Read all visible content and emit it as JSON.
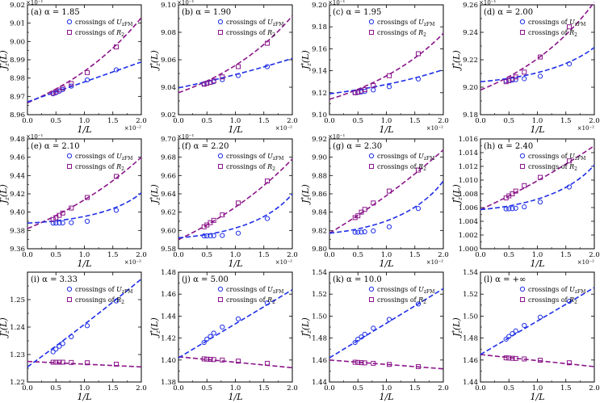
{
  "figure": {
    "legend_circle_label": "crossings of U_zFM",
    "legend_square_label": "crossings of R_2",
    "circle_color": "#1f2fe6",
    "square_color": "#8a168a",
    "fit_color_circle": "#1f2fe6",
    "fit_color_square": "#8a168a"
  },
  "chart_data": [
    {
      "type": "scatter",
      "panel": "a",
      "title": "(a) α = 1.85",
      "xlabel": "1/L",
      "ylabel": "J_z*(L)",
      "xlim": [
        0,
        2.0
      ],
      "ylim": [
        8.96,
        9.02
      ],
      "xticks": [
        "0.0",
        "0.5",
        "1.0",
        "1.5",
        "2.0"
      ],
      "yticks": [
        "8.96",
        "8.97",
        "8.98",
        "8.99",
        "9.00",
        "9.01",
        "9.02"
      ],
      "x_exponent": "×10⁻²",
      "y_exponent": "×10⁻¹",
      "x_points": [
        0.45,
        0.5,
        0.56,
        0.62,
        0.77,
        1.05,
        1.56
      ],
      "circle_series": [
        8.9714,
        8.972,
        8.9728,
        8.9737,
        8.9756,
        8.979,
        8.9845
      ],
      "square_series": [
        8.9718,
        8.9725,
        8.9735,
        8.9745,
        8.977,
        8.983,
        8.997
      ],
      "circle_fit": {
        "x0": 0,
        "y0": 8.967,
        "x1": 2.0,
        "y1": 8.9888,
        "curv": 0
      },
      "square_fit": {
        "x0": 0,
        "y0": 8.9665,
        "x1": 2.0,
        "y1": 9.013,
        "curv": 0.4
      }
    },
    {
      "type": "scatter",
      "panel": "b",
      "title": "(b) α = 1.90",
      "xlabel": "1/L",
      "ylabel": "J_z*(L)",
      "xlim": [
        0,
        2.0
      ],
      "ylim": [
        9.02,
        9.1
      ],
      "xticks": [
        "0.0",
        "0.5",
        "1.0",
        "1.5",
        "2.0"
      ],
      "yticks": [
        "9.02",
        "9.04",
        "9.06",
        "9.08",
        "9.10"
      ],
      "x_exponent": "×10⁻²",
      "y_exponent": "×10⁻¹",
      "x_points": [
        0.45,
        0.5,
        0.56,
        0.62,
        0.77,
        1.05,
        1.56
      ],
      "circle_series": [
        9.0425,
        9.043,
        9.0435,
        9.044,
        9.0455,
        9.0485,
        9.055
      ],
      "square_series": [
        9.0422,
        9.0428,
        9.0436,
        9.0446,
        9.0475,
        9.055,
        9.072
      ],
      "circle_fit": {
        "x0": 0,
        "y0": 9.0395,
        "x1": 2.0,
        "y1": 9.061,
        "curv": 0.15
      },
      "square_fit": {
        "x0": 0,
        "y0": 9.036,
        "x1": 2.0,
        "y1": 9.092,
        "curv": 0.45
      }
    },
    {
      "type": "scatter",
      "panel": "c",
      "title": "(c) α = 1.95",
      "xlabel": "1/L",
      "ylabel": "J_z*(L)",
      "xlim": [
        0,
        2.0
      ],
      "ylim": [
        9.1,
        9.2
      ],
      "xticks": [
        "0.0",
        "0.5",
        "1.0",
        "1.5",
        "2.0"
      ],
      "yticks": [
        "9.10",
        "9.12",
        "9.14",
        "9.16",
        "9.18",
        "9.20"
      ],
      "x_exponent": "×10⁻²",
      "y_exponent": "×10⁻¹",
      "x_points": [
        0.45,
        0.5,
        0.56,
        0.62,
        0.77,
        1.05,
        1.56
      ],
      "circle_series": [
        9.12,
        9.1203,
        9.1207,
        9.1212,
        9.1225,
        9.1255,
        9.1325
      ],
      "square_series": [
        9.12,
        9.1205,
        9.1215,
        9.1228,
        9.1265,
        9.1355,
        9.1555
      ],
      "circle_fit": {
        "x0": 0,
        "y0": 9.119,
        "x1": 2.0,
        "y1": 9.141,
        "curv": 0.35
      },
      "square_fit": {
        "x0": 0,
        "y0": 9.114,
        "x1": 2.0,
        "y1": 9.174,
        "curv": 0.45
      }
    },
    {
      "type": "scatter",
      "panel": "d",
      "title": "(d) α = 2.00",
      "xlabel": "1/L",
      "ylabel": "J_z*(L)",
      "xlim": [
        0,
        2.0
      ],
      "ylim": [
        9.18,
        9.26
      ],
      "xticks": [
        "0.0",
        "0.5",
        "1.0",
        "1.5",
        "2.0"
      ],
      "yticks": [
        "9.18",
        "9.20",
        "9.22",
        "9.24",
        "9.26"
      ],
      "x_exponent": "×10⁻²",
      "y_exponent": "×10⁻¹",
      "x_points": [
        0.45,
        0.5,
        0.56,
        0.62,
        0.77,
        1.05,
        1.56
      ],
      "circle_series": [
        9.2048,
        9.205,
        9.2052,
        9.2055,
        9.2062,
        9.208,
        9.217
      ],
      "square_series": [
        9.204,
        9.2048,
        9.206,
        9.2075,
        9.211,
        9.222,
        9.244
      ],
      "circle_fit": {
        "x0": 0,
        "y0": 9.204,
        "x1": 2.0,
        "y1": 9.229,
        "curv": 0.75
      },
      "square_fit": {
        "x0": 0,
        "y0": 9.198,
        "x1": 2.0,
        "y1": 9.262,
        "curv": 0.45
      }
    },
    {
      "type": "scatter",
      "panel": "e",
      "title": "(e) α = 2.10",
      "xlabel": "1/L",
      "ylabel": "J_z*(L)",
      "xlim": [
        0,
        2.0
      ],
      "ylim": [
        9.36,
        9.48
      ],
      "xticks": [
        "0.0",
        "0.5",
        "1.0",
        "1.5",
        "2.0"
      ],
      "yticks": [
        "9.36",
        "9.38",
        "9.40",
        "9.42",
        "9.44",
        "9.46",
        "9.48"
      ],
      "x_exponent": "×10⁻²",
      "y_exponent": "×10⁻¹",
      "x_points": [
        0.45,
        0.5,
        0.56,
        0.62,
        0.77,
        1.05,
        1.56
      ],
      "circle_series": [
        9.388,
        9.388,
        9.3881,
        9.3882,
        9.3885,
        9.39,
        9.402
      ],
      "square_series": [
        9.392,
        9.394,
        9.3965,
        9.399,
        9.4045,
        9.416,
        9.439
      ],
      "circle_fit": {
        "x0": 0,
        "y0": 9.388,
        "x1": 2.0,
        "y1": 9.421,
        "curv": 0.9
      },
      "square_fit": {
        "x0": 0,
        "y0": 9.382,
        "x1": 2.0,
        "y1": 9.46,
        "curv": 0.3
      }
    },
    {
      "type": "scatter",
      "panel": "f",
      "title": "(f) α = 2.20",
      "xlabel": "1/L",
      "ylabel": "J_z*(L)",
      "xlim": [
        0,
        2.0
      ],
      "ylim": [
        9.58,
        9.7
      ],
      "xticks": [
        "0.0",
        "0.5",
        "1.0",
        "1.5",
        "2.0"
      ],
      "yticks": [
        "9.58",
        "9.60",
        "9.62",
        "9.64",
        "9.66",
        "9.68",
        "9.70"
      ],
      "x_exponent": "×10⁻²",
      "y_exponent": "×10⁻¹",
      "x_points": [
        0.45,
        0.5,
        0.56,
        0.62,
        0.77,
        1.05,
        1.56
      ],
      "circle_series": [
        9.594,
        9.594,
        9.5941,
        9.5942,
        9.5945,
        9.597,
        9.613
      ],
      "square_series": [
        9.604,
        9.606,
        9.6085,
        9.611,
        9.617,
        9.63,
        9.654
      ],
      "circle_fit": {
        "x0": 0,
        "y0": 9.592,
        "x1": 2.0,
        "y1": 9.64,
        "curv": 0.9
      },
      "square_fit": {
        "x0": 0,
        "y0": 9.59,
        "x1": 2.0,
        "y1": 9.678,
        "curv": 0.3
      }
    },
    {
      "type": "scatter",
      "panel": "g",
      "title": "(g) α = 2.30",
      "xlabel": "1/L",
      "ylabel": "J_z*(L)",
      "xlim": [
        0,
        2.0
      ],
      "ylim": [
        9.8,
        9.92
      ],
      "xticks": [
        "0.0",
        "0.5",
        "1.0",
        "1.5",
        "2.0"
      ],
      "yticks": [
        "9.80",
        "9.82",
        "9.84",
        "9.86",
        "9.88",
        "9.90",
        "9.92"
      ],
      "x_exponent": "×10⁻²",
      "y_exponent": "×10⁻¹",
      "x_points": [
        0.45,
        0.5,
        0.56,
        0.62,
        0.77,
        1.05,
        1.56
      ],
      "circle_series": [
        9.818,
        9.818,
        9.8182,
        9.8185,
        9.8195,
        9.824,
        9.844
      ],
      "square_series": [
        9.834,
        9.836,
        9.84,
        9.843,
        9.85,
        9.863,
        9.886
      ],
      "circle_fit": {
        "x0": 0,
        "y0": 9.817,
        "x1": 2.0,
        "y1": 9.874,
        "curv": 0.85
      },
      "square_fit": {
        "x0": 0,
        "y0": 9.817,
        "x1": 2.0,
        "y1": 9.908,
        "curv": 0.15
      }
    },
    {
      "type": "scatter",
      "panel": "h",
      "title": "(h) α = 2.40",
      "xlabel": "1/L",
      "ylabel": "J_z*(L)",
      "xlim": [
        0,
        2.0
      ],
      "ylim": [
        1.0,
        1.016
      ],
      "xticks": [
        "0.0",
        "0.5",
        "1.0",
        "1.5",
        "2.0"
      ],
      "yticks": [
        "1.000",
        "1.002",
        "1.004",
        "1.006",
        "1.008",
        "1.010",
        "1.012",
        "1.014",
        "1.016"
      ],
      "x_exponent": "×10⁻²",
      "y_exponent": "",
      "x_points": [
        0.45,
        0.5,
        0.56,
        0.62,
        0.77,
        1.05,
        1.56
      ],
      "circle_series": [
        1.0058,
        1.00582,
        1.00585,
        1.0059,
        1.0061,
        1.0068,
        1.009
      ],
      "square_series": [
        1.0074,
        1.0077,
        1.008,
        1.0084,
        1.0092,
        1.0104,
        1.0128
      ],
      "circle_fit": {
        "x0": 0,
        "y0": 1.0057,
        "x1": 2.0,
        "y1": 1.0122,
        "curv": 0.85
      },
      "square_fit": {
        "x0": 0,
        "y0": 1.0057,
        "x1": 2.0,
        "y1": 1.015,
        "curv": 0.15
      }
    },
    {
      "type": "scatter",
      "panel": "i",
      "title": "(i) α = 3.33",
      "xlabel": "1/L",
      "ylabel": "J_z*(L)",
      "xlim": [
        0,
        2.0
      ],
      "ylim": [
        1.22,
        1.26
      ],
      "xticks": [
        "0.0",
        "0.5",
        "1.0",
        "1.5",
        "2.0"
      ],
      "yticks": [
        "1.22",
        "1.23",
        "1.24",
        "1.25"
      ],
      "x_exponent": "",
      "y_exponent": "",
      "x_points": [
        0.45,
        0.5,
        0.56,
        0.62,
        0.77,
        1.05,
        1.56
      ],
      "circle_series": [
        1.231,
        1.232,
        1.233,
        1.234,
        1.2365,
        1.2405,
        1.2495
      ],
      "square_series": [
        1.2272,
        1.2272,
        1.2272,
        1.2272,
        1.2271,
        1.227,
        1.2265
      ],
      "circle_fit": {
        "x0": 0,
        "y0": 1.2255,
        "x1": 2.0,
        "y1": 1.2575,
        "curv": 0.05
      },
      "square_fit": {
        "x0": 0,
        "y0": 1.2275,
        "x1": 2.0,
        "y1": 1.2255,
        "curv": 0
      }
    },
    {
      "type": "scatter",
      "panel": "j",
      "title": "(j) α = 5.00",
      "xlabel": "1/L",
      "ylabel": "J_z*(L)",
      "xlim": [
        0,
        2.0
      ],
      "ylim": [
        1.38,
        1.48
      ],
      "xticks": [
        "0.0",
        "0.5",
        "1.0",
        "1.5",
        "2.0"
      ],
      "yticks": [
        "1.38",
        "1.40",
        "1.42",
        "1.44",
        "1.46",
        "1.48"
      ],
      "x_exponent": "",
      "y_exponent": "",
      "x_points": [
        0.45,
        0.5,
        0.56,
        0.62,
        0.77,
        1.05,
        1.56
      ],
      "circle_series": [
        1.416,
        1.419,
        1.4215,
        1.4245,
        1.43,
        1.4375,
        1.452
      ],
      "square_series": [
        1.401,
        1.4008,
        1.4006,
        1.4004,
        1.4,
        1.399,
        1.397
      ],
      "circle_fit": {
        "x0": 0,
        "y0": 1.402,
        "x1": 2.0,
        "y1": 1.464,
        "curv": 0
      },
      "square_fit": {
        "x0": 0,
        "y0": 1.403,
        "x1": 2.0,
        "y1": 1.393,
        "curv": 0
      }
    },
    {
      "type": "scatter",
      "panel": "k",
      "title": "(k) α = 10.0",
      "xlabel": "1/L",
      "ylabel": "J_z*(L)",
      "xlim": [
        0,
        2.0
      ],
      "ylim": [
        1.44,
        1.54
      ],
      "xticks": [
        "0.0",
        "0.5",
        "1.0",
        "1.5",
        "2.0"
      ],
      "yticks": [
        "1.44",
        "1.46",
        "1.48",
        "1.50",
        "1.52",
        "1.54"
      ],
      "x_exponent": "",
      "y_exponent": "",
      "x_points": [
        0.45,
        0.5,
        0.56,
        0.62,
        0.77,
        1.05,
        1.56
      ],
      "circle_series": [
        1.476,
        1.479,
        1.481,
        1.4835,
        1.489,
        1.497,
        1.511
      ],
      "square_series": [
        1.458,
        1.4578,
        1.4576,
        1.4574,
        1.457,
        1.456,
        1.454
      ],
      "circle_fit": {
        "x0": 0,
        "y0": 1.462,
        "x1": 2.0,
        "y1": 1.525,
        "curv": 0
      },
      "square_fit": {
        "x0": 0,
        "y0": 1.46,
        "x1": 2.0,
        "y1": 1.452,
        "curv": 0
      }
    },
    {
      "type": "scatter",
      "panel": "l",
      "title": "(l) α = +∞",
      "xlabel": "1/L",
      "ylabel": "J_z*(L)",
      "xlim": [
        0,
        2.0
      ],
      "ylim": [
        1.44,
        1.54
      ],
      "xticks": [
        "0.0",
        "0.5",
        "1.0",
        "1.5",
        "2.0"
      ],
      "yticks": [
        "1.44",
        "1.46",
        "1.48",
        "1.50",
        "1.52",
        "1.54"
      ],
      "x_exponent": "",
      "y_exponent": "",
      "x_points": [
        0.45,
        0.5,
        0.56,
        0.62,
        0.77,
        1.05,
        1.56
      ],
      "circle_series": [
        1.479,
        1.4815,
        1.484,
        1.4865,
        1.4915,
        1.499,
        1.5135
      ],
      "square_series": [
        1.462,
        1.4618,
        1.4616,
        1.4614,
        1.461,
        1.4598,
        1.4575
      ],
      "circle_fit": {
        "x0": 0,
        "y0": 1.465,
        "x1": 2.0,
        "y1": 1.526,
        "curv": 0
      },
      "square_fit": {
        "x0": 0,
        "y0": 1.465,
        "x1": 2.0,
        "y1": 1.454,
        "curv": 0
      }
    }
  ]
}
